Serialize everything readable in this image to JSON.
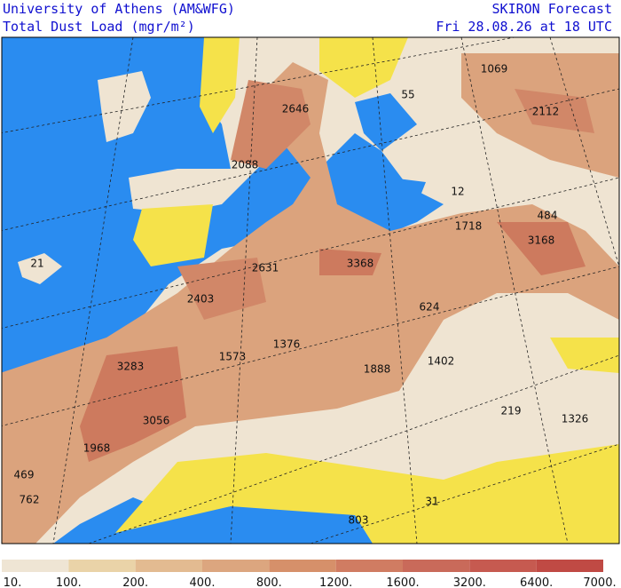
{
  "header": {
    "left": [
      "University of Athens (AM&WFG)",
      "Total Dust Load (mgr/m²)"
    ],
    "right": [
      "SKIRON Forecast",
      "Fri 28.08.26 at 18 UTC"
    ]
  },
  "map": {
    "labels": [
      {
        "text": "1069",
        "at": "ru"
      },
      {
        "text": "55",
        "at": "bs"
      },
      {
        "text": "2646",
        "at": "alps"
      },
      {
        "text": "2112",
        "at": "kz"
      },
      {
        "text": "2088",
        "at": "fr"
      },
      {
        "text": "12",
        "at": "tr"
      },
      {
        "text": "484",
        "at": "ir"
      },
      {
        "text": "1718",
        "at": "sy"
      },
      {
        "text": "3168",
        "at": "iq"
      },
      {
        "text": "21",
        "at": "ma"
      },
      {
        "text": "3368",
        "at": "ly"
      },
      {
        "text": "2631",
        "at": "tn"
      },
      {
        "text": "2403",
        "at": "dz"
      },
      {
        "text": "624",
        "at": "eg"
      },
      {
        "text": "1376",
        "at": "dz2"
      },
      {
        "text": "1573",
        "at": "dz3"
      },
      {
        "text": "1402",
        "at": "sd"
      },
      {
        "text": "1888",
        "at": "td"
      },
      {
        "text": "3283",
        "at": "eh"
      },
      {
        "text": "219",
        "at": "et"
      },
      {
        "text": "1326",
        "at": "so"
      },
      {
        "text": "3056",
        "at": "mr"
      },
      {
        "text": "1968",
        "at": "sn"
      },
      {
        "text": "469",
        "at": "cv"
      },
      {
        "text": "762",
        "at": "cv2"
      },
      {
        "text": "31",
        "at": "ss"
      },
      {
        "text": "803",
        "at": "cm"
      }
    ]
  },
  "colorbar": {
    "labels": [
      "10.",
      "100.",
      "200.",
      "400.",
      "800.",
      "1200.",
      "1600.",
      "3200.",
      "6400.",
      "7000."
    ]
  }
}
